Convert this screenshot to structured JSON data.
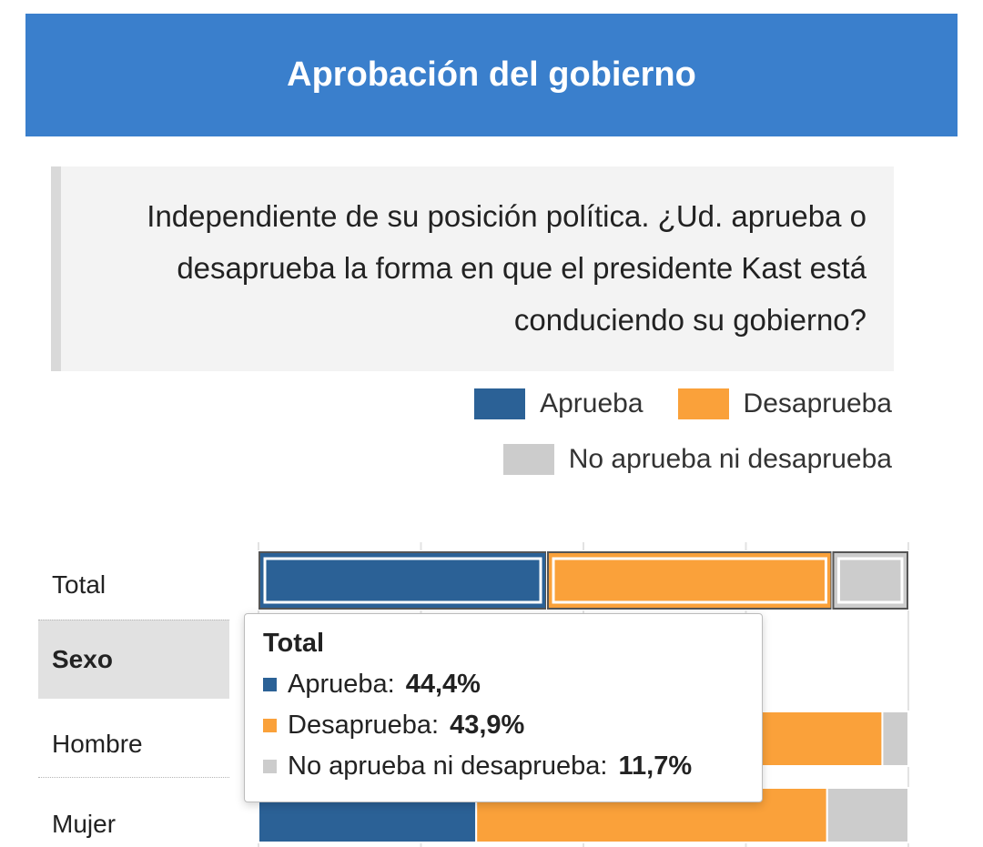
{
  "header": {
    "title": "Aprobación del gobierno"
  },
  "question": {
    "text": "Independiente de su posición política. ¿Ud. aprueba o desaprueba la forma en que el presidente Kast está conduciendo su gobierno?"
  },
  "legend": [
    {
      "label": "Aprueba",
      "color": "#2b6196"
    },
    {
      "label": "Desaprueba",
      "color": "#faa13a"
    },
    {
      "label": "No aprueba ni desaprueba",
      "color": "#cccccc"
    }
  ],
  "rows": [
    {
      "label": "Total"
    },
    {
      "label": "Sexo"
    },
    {
      "label": "Hombre"
    },
    {
      "label": "Mujer"
    }
  ],
  "tooltip": {
    "title": "Total",
    "items": [
      {
        "label": "Aprueba:",
        "value": "44,4%",
        "color": "#2b6196"
      },
      {
        "label": "Desaprueba:",
        "value": "43,9%",
        "color": "#faa13a"
      },
      {
        "label": "No aprueba ni desaprueba:",
        "value": "11,7%",
        "color": "#cccccc"
      }
    ]
  },
  "chart_data": {
    "type": "bar",
    "orientation": "horizontal",
    "stacked": true,
    "categories": [
      "Total",
      "Hombre",
      "Mujer"
    ],
    "series": [
      {
        "name": "Aprueba",
        "values": [
          44.4,
          46.0,
          33.5
        ]
      },
      {
        "name": "Desaprueba",
        "values": [
          43.9,
          50.0,
          54.0
        ]
      },
      {
        "name": "No aprueba ni desaprueba",
        "values": [
          11.7,
          4.0,
          12.5
        ]
      }
    ],
    "xlim": [
      0,
      100
    ],
    "grid": true,
    "legend_position": "top-right"
  }
}
